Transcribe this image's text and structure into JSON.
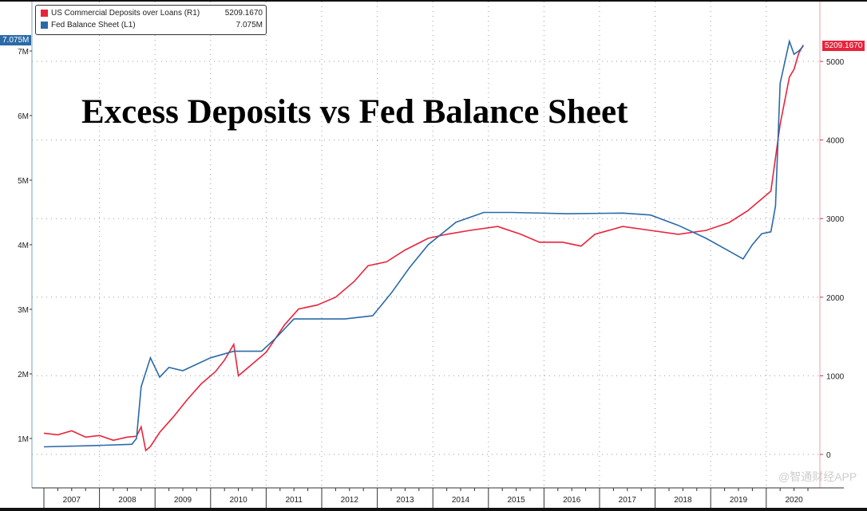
{
  "chart_data": {
    "type": "line",
    "title": "Excess Deposits vs Fed Balance Sheet",
    "legend_placement": "top-left",
    "grid": true,
    "x_ticks": [
      "2007",
      "2008",
      "2009",
      "2010",
      "2011",
      "2012",
      "2013",
      "2014",
      "2015",
      "2016",
      "2017",
      "2018",
      "2019",
      "2020"
    ],
    "left_axis": {
      "ticks": [
        "1M",
        "2M",
        "3M",
        "4M",
        "5M",
        "6M",
        "7M"
      ],
      "ylim": [
        0.2,
        7.3
      ],
      "unit": "M"
    },
    "right_axis": {
      "ticks": [
        "0",
        "1000",
        "2000",
        "3000",
        "4000",
        "5000"
      ],
      "ylim": [
        -300,
        5300
      ]
    },
    "series": [
      {
        "name": "US Commercial Deposits over Loans (R1)",
        "axis": "right",
        "color": "#e8243c",
        "last_value": "5209.1670",
        "points": [
          [
            "2007-01",
            270
          ],
          [
            "2007-04",
            250
          ],
          [
            "2007-07",
            300
          ],
          [
            "2007-10",
            220
          ],
          [
            "2008-01",
            240
          ],
          [
            "2008-04",
            180
          ],
          [
            "2008-07",
            220
          ],
          [
            "2008-09",
            230
          ],
          [
            "2008-10",
            350
          ],
          [
            "2008-11",
            50
          ],
          [
            "2008-12",
            100
          ],
          [
            "2009-02",
            280
          ],
          [
            "2009-05",
            480
          ],
          [
            "2009-08",
            700
          ],
          [
            "2009-11",
            900
          ],
          [
            "2010-02",
            1050
          ],
          [
            "2010-04",
            1200
          ],
          [
            "2010-06",
            1400
          ],
          [
            "2010-07",
            1000
          ],
          [
            "2010-10",
            1150
          ],
          [
            "2011-01",
            1300
          ],
          [
            "2011-05",
            1650
          ],
          [
            "2011-08",
            1850
          ],
          [
            "2011-12",
            1900
          ],
          [
            "2012-04",
            2000
          ],
          [
            "2012-08",
            2200
          ],
          [
            "2012-11",
            2400
          ],
          [
            "2013-03",
            2450
          ],
          [
            "2013-07",
            2600
          ],
          [
            "2013-12",
            2750
          ],
          [
            "2014-04",
            2800
          ],
          [
            "2014-09",
            2850
          ],
          [
            "2015-03",
            2900
          ],
          [
            "2015-08",
            2800
          ],
          [
            "2015-12",
            2700
          ],
          [
            "2016-05",
            2700
          ],
          [
            "2016-09",
            2650
          ],
          [
            "2016-12",
            2800
          ],
          [
            "2017-06",
            2900
          ],
          [
            "2017-12",
            2850
          ],
          [
            "2018-06",
            2800
          ],
          [
            "2018-12",
            2850
          ],
          [
            "2019-05",
            2950
          ],
          [
            "2019-09",
            3100
          ],
          [
            "2019-12",
            3250
          ],
          [
            "2020-02",
            3350
          ],
          [
            "2020-04",
            4200
          ],
          [
            "2020-06",
            4800
          ],
          [
            "2020-07",
            4900
          ],
          [
            "2020-08",
            5100
          ],
          [
            "2020-09",
            5209.167
          ]
        ]
      },
      {
        "name": "Fed Balance Sheet (L1)",
        "axis": "left",
        "color": "#2a6aa8",
        "last_value": "7.075M",
        "points": [
          [
            "2007-01",
            0.87
          ],
          [
            "2007-12",
            0.89
          ],
          [
            "2008-08",
            0.91
          ],
          [
            "2008-09",
            1.0
          ],
          [
            "2008-10",
            1.8
          ],
          [
            "2008-12",
            2.25
          ],
          [
            "2009-02",
            1.95
          ],
          [
            "2009-04",
            2.1
          ],
          [
            "2009-07",
            2.05
          ],
          [
            "2009-10",
            2.15
          ],
          [
            "2010-01",
            2.25
          ],
          [
            "2010-06",
            2.35
          ],
          [
            "2010-12",
            2.35
          ],
          [
            "2011-03",
            2.55
          ],
          [
            "2011-07",
            2.85
          ],
          [
            "2011-12",
            2.85
          ],
          [
            "2012-06",
            2.85
          ],
          [
            "2012-12",
            2.9
          ],
          [
            "2013-04",
            3.25
          ],
          [
            "2013-08",
            3.65
          ],
          [
            "2013-12",
            4.0
          ],
          [
            "2014-06",
            4.35
          ],
          [
            "2014-12",
            4.5
          ],
          [
            "2015-06",
            4.5
          ],
          [
            "2016-06",
            4.48
          ],
          [
            "2017-06",
            4.49
          ],
          [
            "2017-12",
            4.46
          ],
          [
            "2018-06",
            4.3
          ],
          [
            "2018-12",
            4.1
          ],
          [
            "2019-05",
            3.9
          ],
          [
            "2019-08",
            3.78
          ],
          [
            "2019-10",
            4.0
          ],
          [
            "2019-12",
            4.17
          ],
          [
            "2020-02",
            4.2
          ],
          [
            "2020-03",
            4.6
          ],
          [
            "2020-04",
            6.5
          ],
          [
            "2020-06",
            7.15
          ],
          [
            "2020-07",
            6.95
          ],
          [
            "2020-08",
            7.0
          ],
          [
            "2020-09",
            7.075
          ]
        ]
      }
    ]
  },
  "watermark": "@智通财经APP"
}
